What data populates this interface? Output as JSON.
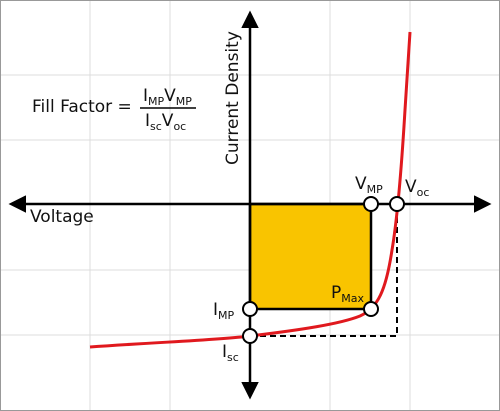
{
  "formula": {
    "label": "Fill Factor =",
    "numerator": [
      {
        "main": "I",
        "sub": "MP"
      },
      {
        "main": "V",
        "sub": "MP"
      }
    ],
    "denominator": [
      {
        "main": "I",
        "sub": "sc"
      },
      {
        "main": "V",
        "sub": "oc"
      }
    ]
  },
  "axes": {
    "y_label": "Current Density",
    "x_label": "Voltage"
  },
  "points": {
    "v_mp": {
      "main": "V",
      "sub": "MP"
    },
    "v_oc": {
      "main": "V",
      "sub": "oc"
    },
    "i_mp": {
      "main": "I",
      "sub": "MP"
    },
    "i_sc": {
      "main": "I",
      "sub": "sc"
    },
    "p_max": {
      "main": "P",
      "sub": "Max"
    }
  }
}
